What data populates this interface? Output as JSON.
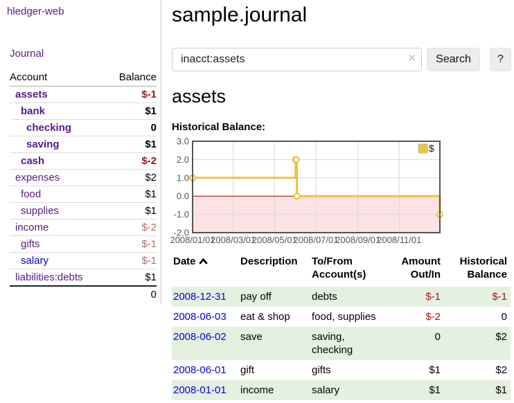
{
  "app": {
    "title": "hledger-web",
    "journal": "Journal"
  },
  "colors": {
    "link_purple": "#551a8b",
    "link_blue": "#0101dd",
    "neg_strong": "#9c1616",
    "neg_muted": "#b36b6b",
    "stripe_green": "#e4f0e0",
    "accent_gold": "#edc240"
  },
  "sidebar": {
    "accounts_table": {
      "headers": [
        "Account",
        "Balance"
      ],
      "rows": [
        {
          "account": "assets",
          "level": 1,
          "bold": true,
          "balance": "$-1",
          "balance_style": "neg-strong"
        },
        {
          "account": "bank",
          "level": 2,
          "bold": true,
          "balance": "$1",
          "balance_style": "pos"
        },
        {
          "account": "checking",
          "level": 3,
          "bold": true,
          "balance": "0",
          "balance_style": "pos"
        },
        {
          "account": "saving",
          "level": 3,
          "bold": true,
          "balance": "$1",
          "balance_style": "pos"
        },
        {
          "account": "cash",
          "level": 2,
          "bold": true,
          "balance": "$-2",
          "balance_style": "neg-strong"
        },
        {
          "account": "expenses",
          "level": 1,
          "bold": false,
          "balance": "$2",
          "balance_style": "pos"
        },
        {
          "account": "food",
          "level": 2,
          "bold": false,
          "balance": "$1",
          "balance_style": "pos"
        },
        {
          "account": "supplies",
          "level": 2,
          "bold": false,
          "balance": "$1",
          "balance_style": "pos"
        },
        {
          "account": "income",
          "level": 1,
          "bold": false,
          "balance": "$-2",
          "balance_style": "neg-muted"
        },
        {
          "account": "gifts",
          "level": 2,
          "bold": false,
          "balance": "$-1",
          "balance_style": "neg-muted"
        },
        {
          "account": "salary",
          "level": 2,
          "bold": false,
          "balance": "$-1",
          "balance_style": "neg-muted",
          "link_style": "unvisited"
        },
        {
          "account": "liabilities:debts",
          "level": 1,
          "bold": false,
          "balance": "$1",
          "balance_style": "pos"
        }
      ],
      "total": "0"
    }
  },
  "main": {
    "title": "sample.journal",
    "search": {
      "value": "inacct:assets",
      "clear_icon": "×",
      "button": "Search",
      "help_button": "?"
    },
    "account_heading": "assets",
    "chart_label": "Historical Balance:"
  },
  "chart_data": {
    "type": "line",
    "title": "Historical Balance",
    "step": true,
    "series": [
      {
        "name": "$",
        "color": "#edc240",
        "points": [
          [
            "2008-01-01",
            1
          ],
          [
            "2008-06-01",
            2
          ],
          [
            "2008-06-02",
            2
          ],
          [
            "2008-06-03",
            0
          ],
          [
            "2008-12-31",
            -1
          ]
        ]
      }
    ],
    "x_range": [
      "2008-01-01",
      "2008-12-31"
    ],
    "x_ticks": [
      "2008/01/01",
      "2008/03/01",
      "2008/05/01",
      "2008/07/01",
      "2008/09/01",
      "2008/11/01"
    ],
    "y_ticks": [
      "3.0",
      "2.0",
      "1.0",
      "0.0",
      "-1.0",
      "-2.0"
    ],
    "ylim": [
      -2,
      3
    ],
    "grid": true,
    "legend_position": "top-right",
    "negative_region_color": "#fbdddd",
    "zero_line_color": "#8b0000",
    "grid_color": "#d9d9d9",
    "border_color": "#545454"
  },
  "transactions": {
    "headers": {
      "date": "Date",
      "description": "Description",
      "accounts": "To/From Account(s)",
      "amount": "Amount Out/In",
      "balance": "Historical Balance"
    },
    "sort_icon": "chevron-up",
    "rows": [
      {
        "date": "2008-12-31",
        "description": "pay off",
        "accounts": "debts",
        "amount": "$-1",
        "amount_neg": true,
        "balance": "$-1",
        "balance_neg": true
      },
      {
        "date": "2008-06-03",
        "description": "eat & shop",
        "accounts": "food, supplies",
        "amount": "$-2",
        "amount_neg": true,
        "balance": "0",
        "balance_neg": false
      },
      {
        "date": "2008-06-02",
        "description": "save",
        "accounts": "saving, checking",
        "amount": "0",
        "amount_neg": false,
        "balance": "$2",
        "balance_neg": false
      },
      {
        "date": "2008-06-01",
        "description": "gift",
        "accounts": "gifts",
        "amount": "$1",
        "amount_neg": false,
        "balance": "$2",
        "balance_neg": false
      },
      {
        "date": "2008-01-01",
        "description": "income",
        "accounts": "salary",
        "amount": "$1",
        "amount_neg": false,
        "balance": "$1",
        "balance_neg": false
      }
    ]
  }
}
